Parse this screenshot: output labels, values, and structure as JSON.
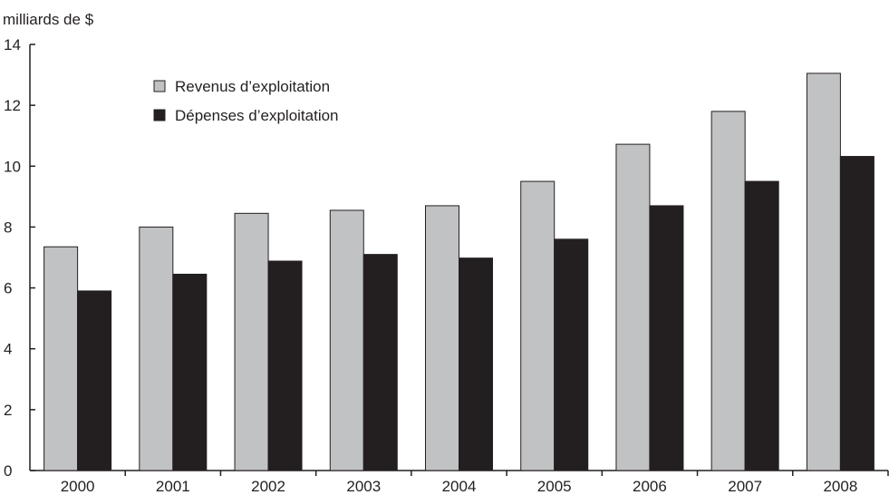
{
  "chart_data": {
    "type": "bar",
    "title": "",
    "ylabel": "milliards de $",
    "xlabel": "",
    "ylim": [
      0,
      14
    ],
    "yticks": [
      0,
      2,
      4,
      6,
      8,
      10,
      12,
      14
    ],
    "grid": false,
    "legend_position": "top-left",
    "categories": [
      "2000",
      "2001",
      "2002",
      "2003",
      "2004",
      "2005",
      "2006",
      "2007",
      "2008"
    ],
    "series": [
      {
        "name": "Revenus d’exploitation",
        "color": "#c0c2c4",
        "values": [
          7.35,
          8.0,
          8.45,
          8.55,
          8.7,
          9.5,
          10.72,
          11.8,
          13.05
        ]
      },
      {
        "name": "Dépenses d’exploitation",
        "color": "#231f20",
        "values": [
          5.9,
          6.45,
          6.88,
          7.1,
          6.98,
          7.6,
          8.7,
          9.5,
          10.32
        ]
      }
    ]
  }
}
